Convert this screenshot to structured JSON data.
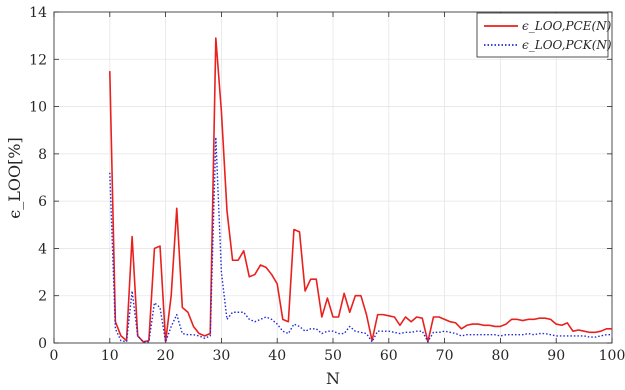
{
  "chart_data": {
    "type": "line",
    "xlabel": "N",
    "ylabel": "ϵ_LOO[%]",
    "xlim": [
      0,
      100
    ],
    "ylim": [
      0,
      14
    ],
    "grid": true,
    "legend_position": "top-right",
    "x_ticks": [
      "0",
      "10",
      "20",
      "30",
      "40",
      "50",
      "60",
      "70",
      "80",
      "90",
      "100"
    ],
    "y_ticks": [
      "0",
      "2",
      "4",
      "6",
      "8",
      "10",
      "12",
      "14"
    ],
    "series": [
      {
        "name": "ϵ_LOO,PCE(N)",
        "color": "#e8211e",
        "line_style": "solid",
        "x": [
          10,
          11,
          12,
          13,
          14,
          15,
          16,
          17,
          18,
          19,
          20,
          21,
          22,
          23,
          24,
          25,
          26,
          27,
          28,
          29,
          30,
          31,
          32,
          33,
          34,
          35,
          36,
          37,
          38,
          39,
          40,
          41,
          42,
          43,
          44,
          45,
          46,
          47,
          48,
          49,
          50,
          51,
          52,
          53,
          54,
          55,
          56,
          57,
          58,
          59,
          60,
          61,
          62,
          63,
          64,
          65,
          66,
          67,
          68,
          69,
          70,
          71,
          72,
          73,
          74,
          75,
          76,
          77,
          78,
          79,
          80,
          81,
          82,
          83,
          84,
          85,
          86,
          87,
          88,
          89,
          90,
          91,
          92,
          93,
          94,
          95,
          96,
          97,
          98,
          99,
          100
        ],
        "values": [
          11.5,
          0.9,
          0.3,
          0.1,
          4.5,
          0.3,
          0.05,
          0.1,
          4.0,
          4.1,
          0.05,
          2.0,
          5.7,
          1.5,
          1.3,
          0.7,
          0.4,
          0.3,
          0.4,
          12.9,
          9.8,
          5.6,
          3.5,
          3.5,
          3.9,
          2.8,
          2.9,
          3.3,
          3.2,
          2.9,
          2.5,
          1.0,
          0.9,
          4.8,
          4.7,
          2.2,
          2.7,
          2.7,
          1.1,
          1.9,
          1.1,
          1.1,
          2.1,
          1.3,
          2.0,
          2.0,
          1.2,
          0.1,
          1.2,
          1.2,
          1.15,
          1.1,
          0.75,
          1.1,
          0.9,
          1.1,
          1.05,
          0.05,
          1.1,
          1.1,
          1.0,
          0.9,
          0.85,
          0.6,
          0.75,
          0.8,
          0.8,
          0.75,
          0.75,
          0.7,
          0.7,
          0.8,
          1.0,
          1.0,
          0.95,
          1.0,
          1.0,
          1.05,
          1.05,
          1.0,
          0.8,
          0.75,
          0.85,
          0.5,
          0.55,
          0.5,
          0.45,
          0.45,
          0.5,
          0.6,
          0.6
        ]
      },
      {
        "name": "ϵ_LOO,PCK(N)",
        "color": "#1f2ad9",
        "line_style": "dotted",
        "x": [
          10,
          11,
          12,
          13,
          14,
          15,
          16,
          17,
          18,
          19,
          20,
          21,
          22,
          23,
          24,
          25,
          26,
          27,
          28,
          29,
          30,
          31,
          32,
          33,
          34,
          35,
          36,
          37,
          38,
          39,
          40,
          41,
          42,
          43,
          44,
          45,
          46,
          47,
          48,
          49,
          50,
          51,
          52,
          53,
          54,
          55,
          56,
          57,
          58,
          59,
          60,
          61,
          62,
          63,
          64,
          65,
          66,
          67,
          68,
          69,
          70,
          71,
          72,
          73,
          74,
          75,
          76,
          77,
          78,
          79,
          80,
          81,
          82,
          83,
          84,
          85,
          86,
          87,
          88,
          89,
          90,
          91,
          92,
          93,
          94,
          95,
          96,
          97,
          98,
          99,
          100
        ],
        "values": [
          7.2,
          0.6,
          0.1,
          0.05,
          2.2,
          0.3,
          0.05,
          0.05,
          1.7,
          1.5,
          0.05,
          0.7,
          1.2,
          0.4,
          0.35,
          0.35,
          0.3,
          0.2,
          0.3,
          8.7,
          3.0,
          1.0,
          1.3,
          1.3,
          1.3,
          1.0,
          0.9,
          1.0,
          1.1,
          1.0,
          0.8,
          0.5,
          0.4,
          0.8,
          0.7,
          0.5,
          0.6,
          0.6,
          0.4,
          0.5,
          0.5,
          0.4,
          0.4,
          0.7,
          0.5,
          0.45,
          0.4,
          0.05,
          0.5,
          0.5,
          0.5,
          0.45,
          0.4,
          0.45,
          0.45,
          0.5,
          0.5,
          0.05,
          0.45,
          0.45,
          0.5,
          0.45,
          0.4,
          0.3,
          0.35,
          0.35,
          0.35,
          0.35,
          0.35,
          0.35,
          0.3,
          0.35,
          0.35,
          0.35,
          0.35,
          0.4,
          0.35,
          0.4,
          0.4,
          0.35,
          0.3,
          0.3,
          0.3,
          0.3,
          0.3,
          0.3,
          0.25,
          0.25,
          0.3,
          0.35,
          0.35
        ]
      }
    ]
  }
}
